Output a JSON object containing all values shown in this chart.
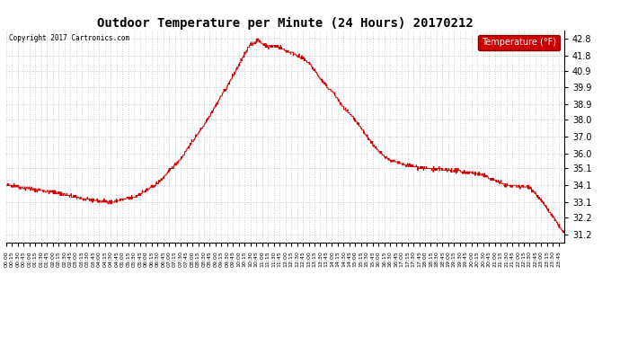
{
  "title": "Outdoor Temperature per Minute (24 Hours) 20170212",
  "copyright_text": "Copyright 2017 Cartronics.com",
  "legend_label": "Temperature (°F)",
  "line_color": "#cc0000",
  "background_color": "#ffffff",
  "grid_color": "#bbbbbb",
  "ylim": [
    30.7,
    43.3
  ],
  "yticks": [
    31.2,
    32.2,
    33.1,
    34.1,
    35.1,
    36.0,
    37.0,
    38.0,
    38.9,
    39.9,
    40.9,
    41.8,
    42.8
  ],
  "xtick_interval": 15,
  "total_minutes": 1440,
  "figsize": [
    6.9,
    3.75
  ],
  "dpi": 100
}
